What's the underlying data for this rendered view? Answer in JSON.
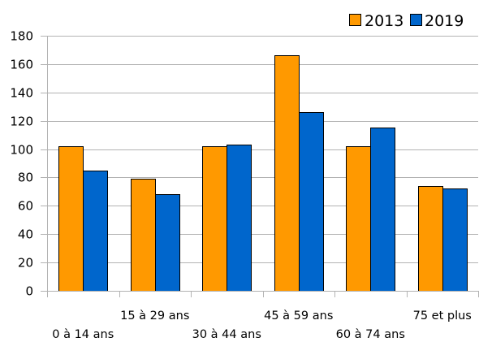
{
  "chart_data": {
    "type": "bar",
    "categories": [
      "0 à 14 ans",
      "15 à 29 ans",
      "30 à 44 ans",
      "45 à 59 ans",
      "60 à 74 ans",
      "75 et plus"
    ],
    "series": [
      {
        "name": "2013",
        "values": [
          102,
          79,
          102,
          166,
          102,
          74
        ],
        "color": "#ff9900"
      },
      {
        "name": "2019",
        "values": [
          85,
          68,
          103,
          126,
          115,
          72
        ],
        "color": "#0066cc"
      }
    ],
    "y_ticks": [
      0,
      20,
      40,
      60,
      80,
      100,
      120,
      140,
      160,
      180
    ],
    "ylim": [
      0,
      180
    ],
    "grid": true,
    "legend_position": "top-right",
    "title": "",
    "xlabel": "",
    "ylabel": ""
  }
}
